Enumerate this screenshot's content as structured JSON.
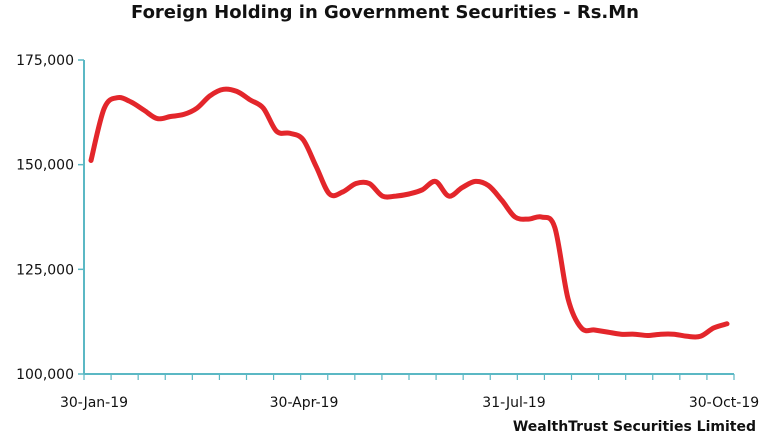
{
  "chart_data": {
    "type": "line",
    "title": "Foreign Holding in Government Securities - Rs.Mn",
    "ylim": [
      100000,
      175000
    ],
    "yticks": [
      100000,
      125000,
      150000,
      175000
    ],
    "ytick_labels": [
      "100,000",
      "125,000",
      "150,000",
      "175,000"
    ],
    "xtick_labels": [
      "30-Jan-19",
      "30-Apr-19",
      "31-Jul-19",
      "30-Oct-19"
    ],
    "grid": false,
    "series": [
      {
        "color": "#e3262b",
        "values": [
          151000,
          163500,
          166000,
          165000,
          163000,
          161000,
          161500,
          162000,
          163500,
          166500,
          168000,
          167500,
          165500,
          163500,
          158000,
          157500,
          156000,
          149500,
          143000,
          143500,
          145500,
          145500,
          142500,
          142500,
          143000,
          144000,
          146000,
          142500,
          144500,
          146000,
          145000,
          141500,
          137500,
          137000,
          137500,
          135000,
          118000,
          111000,
          110500,
          110000,
          109500,
          109500,
          109200,
          109500,
          109500,
          109000,
          109000,
          111000,
          112000
        ]
      }
    ]
  },
  "watermark": "WealthTrust Securities Limited"
}
